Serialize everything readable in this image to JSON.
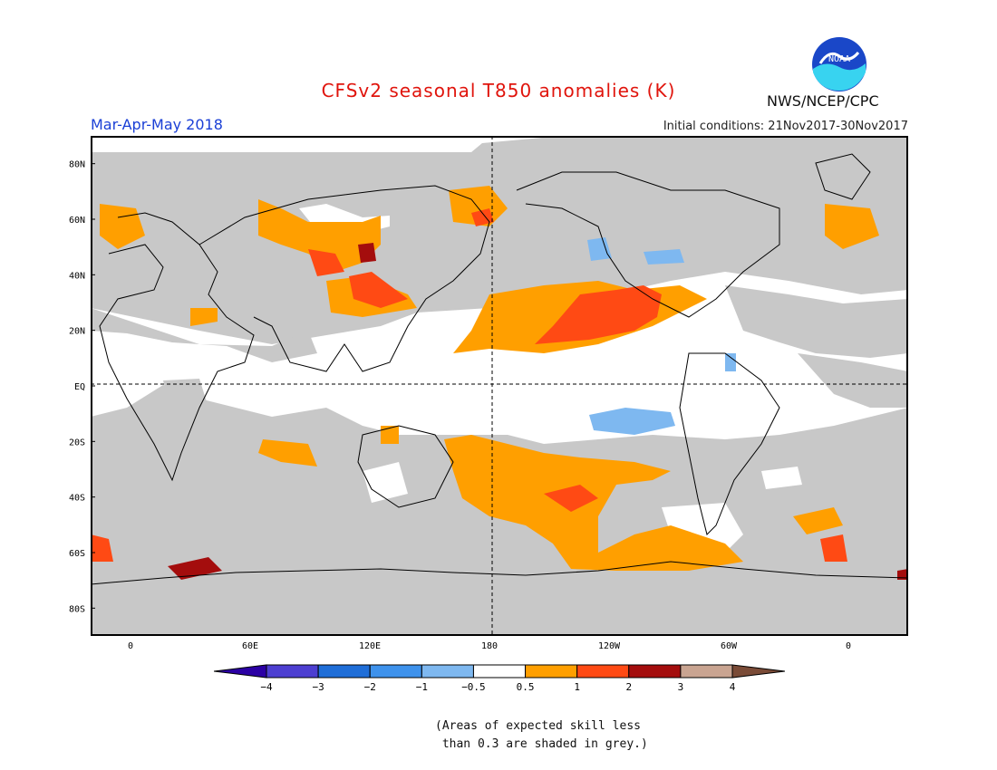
{
  "title": "CFSv2 seasonal T850 anomalies (K)",
  "season": "Mar-Apr-May 2018",
  "initial_conditions": "Initial conditions: 21Nov2017-30Nov2017",
  "agency": "NWS/NCEP/CPC",
  "logo_text": "NOAA",
  "note_line1": "(Areas of expected skill less",
  "note_line2": " than 0.3 are shaded in grey.)",
  "map": {
    "lat_labels": [
      "80N",
      "60N",
      "40N",
      "20N",
      "EQ",
      "20S",
      "40S",
      "60S",
      "80S"
    ],
    "lon_labels": [
      "0",
      "60E",
      "120E",
      "180",
      "120W",
      "60W",
      "0"
    ],
    "lon_values": [
      0,
      60,
      120,
      180,
      240,
      300,
      360
    ],
    "lat_values": [
      80,
      60,
      40,
      20,
      0,
      -20,
      -40,
      -60,
      -80
    ],
    "lon_range": [
      -20,
      390
    ],
    "lat_range": [
      -90,
      90
    ]
  },
  "colorbar": {
    "colors": [
      "#2b00a4",
      "#4d3fd1",
      "#1f6ed8",
      "#3e92ec",
      "#7eb8f0",
      "#ffffff",
      "#ff9f00",
      "#ff4a14",
      "#a40d0d",
      "#c9a491",
      "#7a4b37"
    ],
    "labels": [
      "−4",
      "−3",
      "−2",
      "−1",
      "−0.5",
      "0.5",
      "1",
      "2",
      "3",
      "4"
    ]
  },
  "colors": {
    "grey": "#c8c8c8",
    "orange": "#ff9f00",
    "red": "#ff4a14",
    "darkred": "#a40d0d",
    "lightblue": "#7eb8f0",
    "title": "#e0140c",
    "season": "#1a3fd6"
  }
}
